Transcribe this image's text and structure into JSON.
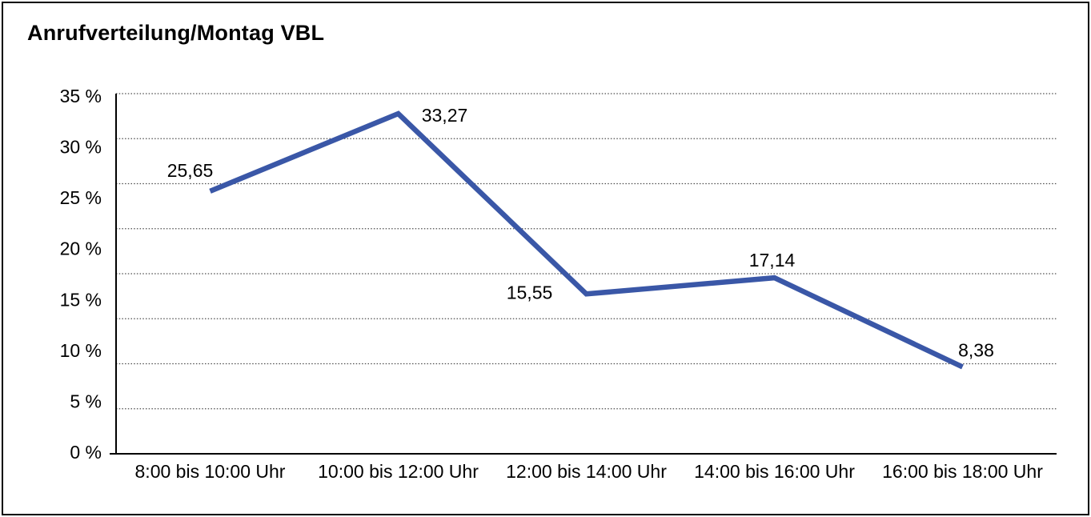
{
  "title": "Anrufverteilung/Montag VBL",
  "chart_data": {
    "type": "line",
    "title": "Anrufverteilung/Montag VBL",
    "categories": [
      "8:00 bis 10:00 Uhr",
      "10:00 bis 12:00 Uhr",
      "12:00 bis 14:00 Uhr",
      "14:00 bis 16:00 Uhr",
      "16:00 bis 18:00 Uhr"
    ],
    "values": [
      25.65,
      33.27,
      15.55,
      17.14,
      8.38
    ],
    "point_labels": [
      "25,65",
      "33,27",
      "15,55",
      "17,14",
      "8,38"
    ],
    "ytick_labels": [
      "0 %",
      "5 %",
      "10 %",
      "15 %",
      "20 %",
      "25 %",
      "30 %",
      "35 %"
    ],
    "ylim": [
      0,
      35
    ],
    "ytick_step": 5,
    "xlabel": "",
    "ylabel": "",
    "grid": "horizontal-dotted",
    "legend": "none",
    "colors": {
      "line": "#3A57A7",
      "text": "#000000",
      "gridline": "#4d4d4d",
      "axis": "#000000",
      "background": "#ffffff",
      "border": "#000000"
    }
  }
}
